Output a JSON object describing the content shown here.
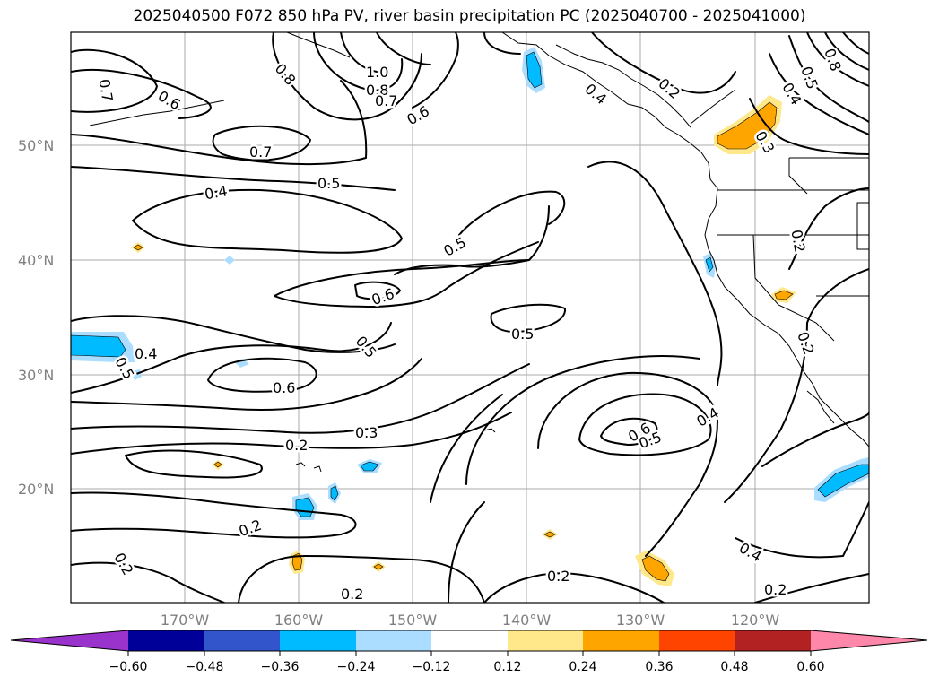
{
  "title": "2025040500 F072 850 hPa PV, river basin precipitation PC (2025040700 - 2025041000)",
  "lat_labels": [
    "50°N",
    "40°N",
    "30°N",
    "20°N"
  ],
  "lon_labels": [
    "170°W",
    "160°W",
    "150°W",
    "140°W",
    "130°W",
    "120°W"
  ],
  "colorbar": {
    "ticks": [
      "−0.60",
      "−0.48",
      "−0.36",
      "−0.24",
      "−0.12",
      "0.12",
      "0.24",
      "0.36",
      "0.48",
      "0.60"
    ],
    "colors": [
      "#9933cc",
      "#000099",
      "#3355cc",
      "#00bbff",
      "#aaddff",
      "#ffffff",
      "#ffe88a",
      "#ffa500",
      "#ff4400",
      "#b22222",
      "#ff88aa"
    ]
  },
  "shading_colors": {
    "blue": "#00bbff",
    "light_blue": "#aaddff",
    "orange": "#ffa500",
    "yellow": "#ffe88a"
  },
  "contour_labels": [
    {
      "text": "0.7"
    },
    {
      "text": "0.6"
    },
    {
      "text": "0.8"
    },
    {
      "text": "1.0"
    },
    {
      "text": "0.8"
    },
    {
      "text": "0.7"
    },
    {
      "text": "0.6"
    },
    {
      "text": "0.4"
    },
    {
      "text": "0.2"
    },
    {
      "text": "0.8"
    },
    {
      "text": "0.5"
    },
    {
      "text": "0.4"
    },
    {
      "text": "0.3"
    },
    {
      "text": "0.7"
    },
    {
      "text": "0.5"
    },
    {
      "text": "0.4"
    },
    {
      "text": "0.5"
    },
    {
      "text": "0.2"
    },
    {
      "text": "0.6"
    },
    {
      "text": "0.5"
    },
    {
      "text": "0.4"
    },
    {
      "text": "0.5"
    },
    {
      "text": "0.5"
    },
    {
      "text": "0.6"
    },
    {
      "text": "0.2"
    },
    {
      "text": "0.3"
    },
    {
      "text": "0.2"
    },
    {
      "text": "0.6"
    },
    {
      "text": "0.5"
    },
    {
      "text": "0.4"
    },
    {
      "text": "0.2"
    },
    {
      "text": "0.2"
    },
    {
      "text": "0.2"
    },
    {
      "text": "0.2"
    },
    {
      "text": "0.4"
    },
    {
      "text": "0.2"
    }
  ]
}
